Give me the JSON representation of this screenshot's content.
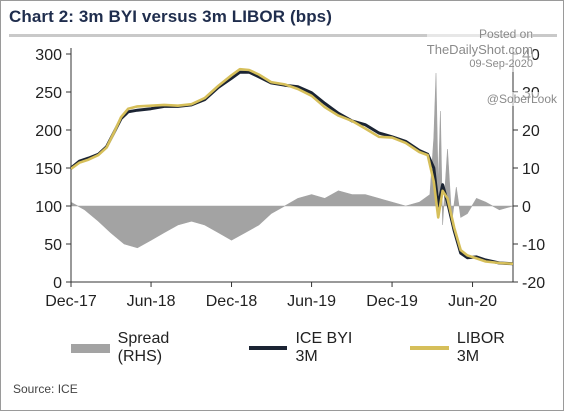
{
  "title": "Chart 2: 3m BYI versus 3m LIBOR (bps)",
  "source": "Source: ICE",
  "watermark": {
    "posted": "Posted on",
    "site": "TheDailyShot.com",
    "date": "09-Sep-2020",
    "handle": "@SoberLook"
  },
  "colors": {
    "spread": "#a3a3a3",
    "byi": "#1b2433",
    "libor": "#d6bf5a",
    "title": "#1f2d4d",
    "axis": "#333333"
  },
  "legend": [
    {
      "key": "spread",
      "label": "Spread (RHS)"
    },
    {
      "key": "byi",
      "label": "ICE BYI 3M"
    },
    {
      "key": "libor",
      "label": "LIBOR 3M"
    }
  ],
  "chart_data": {
    "type": "line",
    "x_tick_labels": [
      "Dec-17",
      "Jun-18",
      "Dec-18",
      "Jun-19",
      "Dec-19",
      "Jun-20"
    ],
    "x_tick_dates": [
      "2017-12-01",
      "2018-06-01",
      "2018-12-01",
      "2019-06-01",
      "2019-12-01",
      "2020-06-01"
    ],
    "x_range": [
      "2017-12-01",
      "2020-09-01"
    ],
    "y_left": {
      "min": 0,
      "max": 300,
      "ticks": [
        0,
        50,
        100,
        150,
        200,
        250,
        300
      ]
    },
    "y_right": {
      "min": -20,
      "max": 40,
      "ticks": [
        -20,
        -10,
        0,
        10,
        20,
        30,
        40
      ]
    },
    "series": [
      {
        "name": "ICE BYI 3M",
        "axis": "left",
        "style": "line",
        "points": [
          [
            "2017-12-01",
            150
          ],
          [
            "2017-12-20",
            159
          ],
          [
            "2018-01-10",
            163
          ],
          [
            "2018-02-01",
            168
          ],
          [
            "2018-02-20",
            178
          ],
          [
            "2018-03-10",
            198
          ],
          [
            "2018-03-25",
            215
          ],
          [
            "2018-04-10",
            224
          ],
          [
            "2018-05-01",
            226
          ],
          [
            "2018-06-01",
            228
          ],
          [
            "2018-07-01",
            231
          ],
          [
            "2018-08-01",
            231
          ],
          [
            "2018-09-01",
            233
          ],
          [
            "2018-10-01",
            240
          ],
          [
            "2018-11-01",
            256
          ],
          [
            "2018-12-01",
            268
          ],
          [
            "2018-12-20",
            276
          ],
          [
            "2019-01-10",
            276
          ],
          [
            "2019-02-01",
            270
          ],
          [
            "2019-03-01",
            262
          ],
          [
            "2019-04-01",
            259
          ],
          [
            "2019-05-01",
            257
          ],
          [
            "2019-06-01",
            249
          ],
          [
            "2019-07-01",
            235
          ],
          [
            "2019-08-01",
            222
          ],
          [
            "2019-09-01",
            212
          ],
          [
            "2019-10-01",
            207
          ],
          [
            "2019-11-01",
            196
          ],
          [
            "2019-12-01",
            191
          ],
          [
            "2020-01-01",
            185
          ],
          [
            "2020-02-01",
            173
          ],
          [
            "2020-02-20",
            168
          ],
          [
            "2020-03-05",
            150
          ],
          [
            "2020-03-15",
            100
          ],
          [
            "2020-03-25",
            128
          ],
          [
            "2020-04-05",
            105
          ],
          [
            "2020-04-20",
            68
          ],
          [
            "2020-05-05",
            38
          ],
          [
            "2020-05-20",
            32
          ],
          [
            "2020-06-10",
            33
          ],
          [
            "2020-07-01",
            29
          ],
          [
            "2020-08-01",
            25
          ],
          [
            "2020-09-01",
            24
          ]
        ]
      },
      {
        "name": "LIBOR 3M",
        "axis": "left",
        "style": "line",
        "points": [
          [
            "2017-12-01",
            149
          ],
          [
            "2017-12-20",
            157
          ],
          [
            "2018-01-10",
            161
          ],
          [
            "2018-02-01",
            167
          ],
          [
            "2018-02-20",
            177
          ],
          [
            "2018-03-10",
            198
          ],
          [
            "2018-03-25",
            217
          ],
          [
            "2018-04-10",
            228
          ],
          [
            "2018-05-01",
            231
          ],
          [
            "2018-06-01",
            232
          ],
          [
            "2018-07-01",
            233
          ],
          [
            "2018-08-01",
            232
          ],
          [
            "2018-09-01",
            234
          ],
          [
            "2018-10-01",
            242
          ],
          [
            "2018-11-01",
            258
          ],
          [
            "2018-12-01",
            272
          ],
          [
            "2018-12-20",
            280
          ],
          [
            "2019-01-10",
            279
          ],
          [
            "2019-02-01",
            273
          ],
          [
            "2019-03-01",
            263
          ],
          [
            "2019-04-01",
            260
          ],
          [
            "2019-05-01",
            254
          ],
          [
            "2019-06-01",
            245
          ],
          [
            "2019-07-01",
            230
          ],
          [
            "2019-08-01",
            219
          ],
          [
            "2019-09-01",
            212
          ],
          [
            "2019-10-01",
            202
          ],
          [
            "2019-11-01",
            191
          ],
          [
            "2019-12-01",
            190
          ],
          [
            "2020-01-01",
            183
          ],
          [
            "2020-02-01",
            171
          ],
          [
            "2020-02-20",
            167
          ],
          [
            "2020-03-05",
            132
          ],
          [
            "2020-03-15",
            85
          ],
          [
            "2020-03-25",
            120
          ],
          [
            "2020-04-05",
            110
          ],
          [
            "2020-04-20",
            72
          ],
          [
            "2020-05-05",
            42
          ],
          [
            "2020-05-20",
            35
          ],
          [
            "2020-06-10",
            31
          ],
          [
            "2020-07-01",
            27
          ],
          [
            "2020-08-01",
            25
          ],
          [
            "2020-09-01",
            24
          ]
        ]
      },
      {
        "name": "Spread (RHS)",
        "axis": "right",
        "style": "area",
        "points": [
          [
            "2017-12-01",
            1
          ],
          [
            "2018-01-01",
            -1
          ],
          [
            "2018-02-01",
            -4
          ],
          [
            "2018-03-01",
            -7
          ],
          [
            "2018-04-01",
            -10
          ],
          [
            "2018-05-01",
            -11
          ],
          [
            "2018-06-01",
            -9
          ],
          [
            "2018-07-01",
            -7
          ],
          [
            "2018-08-01",
            -5
          ],
          [
            "2018-09-01",
            -4
          ],
          [
            "2018-10-01",
            -5
          ],
          [
            "2018-11-01",
            -7
          ],
          [
            "2018-12-01",
            -9
          ],
          [
            "2019-01-01",
            -7
          ],
          [
            "2019-02-01",
            -5
          ],
          [
            "2019-03-01",
            -2
          ],
          [
            "2019-04-01",
            0
          ],
          [
            "2019-05-01",
            2
          ],
          [
            "2019-06-01",
            3
          ],
          [
            "2019-07-01",
            2
          ],
          [
            "2019-08-01",
            4
          ],
          [
            "2019-09-01",
            3
          ],
          [
            "2019-10-01",
            3
          ],
          [
            "2019-11-01",
            2
          ],
          [
            "2019-12-01",
            1
          ],
          [
            "2020-01-01",
            0
          ],
          [
            "2020-02-01",
            1
          ],
          [
            "2020-02-25",
            3
          ],
          [
            "2020-03-05",
            18
          ],
          [
            "2020-03-10",
            35
          ],
          [
            "2020-03-15",
            5
          ],
          [
            "2020-03-20",
            25
          ],
          [
            "2020-03-25",
            -5
          ],
          [
            "2020-04-05",
            15
          ],
          [
            "2020-04-15",
            -4
          ],
          [
            "2020-04-25",
            5
          ],
          [
            "2020-05-05",
            -3
          ],
          [
            "2020-05-20",
            -2
          ],
          [
            "2020-06-10",
            2
          ],
          [
            "2020-07-01",
            1
          ],
          [
            "2020-08-01",
            -1
          ],
          [
            "2020-09-01",
            0
          ]
        ]
      }
    ]
  }
}
